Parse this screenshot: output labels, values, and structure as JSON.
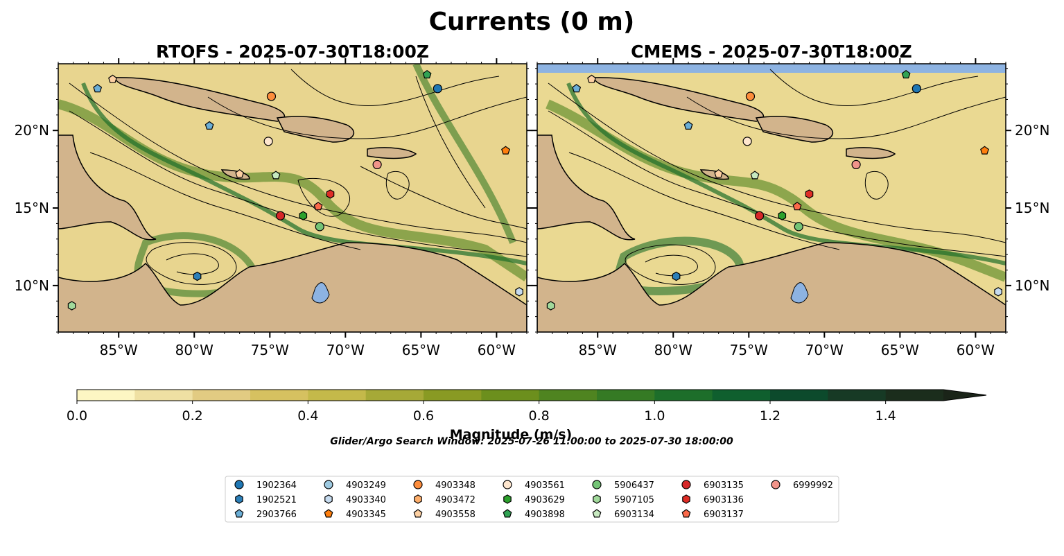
{
  "figure": {
    "title": "Currents (0 m)",
    "search_window": "Glider/Argo Search Window: 2025-07-26 11:00:00 to 2025-07-30 18:00:00"
  },
  "panels": [
    {
      "title": "RTOFS - 2025-07-30T18:00Z"
    },
    {
      "title": "CMEMS - 2025-07-30T18:00Z"
    }
  ],
  "map": {
    "lon_range": [
      -89.0,
      -58.0
    ],
    "lat_range": [
      7.0,
      24.3
    ],
    "lon_ticks": [
      -85,
      -80,
      -75,
      -70,
      -65,
      -60
    ],
    "lat_ticks": [
      10,
      15,
      20
    ],
    "lon_tick_labels": [
      "85°W",
      "80°W",
      "75°W",
      "70°W",
      "65°W",
      "60°W"
    ],
    "lat_tick_labels": [
      "10°N",
      "15°N",
      "20°N"
    ],
    "colors": {
      "land": "#d2b48c",
      "lake": "#8db3e2",
      "river": "#a7bcd6"
    }
  },
  "colorbar": {
    "label": "Magnitude (m/s)",
    "ticks": [
      "0.0",
      "0.2",
      "0.4",
      "0.6",
      "0.8",
      "1.0",
      "1.2",
      "1.4"
    ],
    "levels": [
      0.0,
      0.1,
      0.2,
      0.3,
      0.4,
      0.5,
      0.6,
      0.7,
      0.8,
      0.9,
      1.0,
      1.1,
      1.2,
      1.3,
      1.4,
      1.5
    ],
    "extend": "max",
    "colors": [
      "#fdf6c3",
      "#efe0a3",
      "#e2cb82",
      "#d6c160",
      "#c4b94a",
      "#a6a937",
      "#899a23",
      "#6c8f1d",
      "#4f8420",
      "#357a24",
      "#1d6e2a",
      "#0f5f2e",
      "#0c4a2c",
      "#173a25",
      "#1b2d1c",
      "#1a2418"
    ]
  },
  "legend": {
    "items": [
      {
        "id": "1902364",
        "marker": "circle",
        "color": "#1f77b4"
      },
      {
        "id": "1902521",
        "marker": "hexagon",
        "color": "#2c7fb8"
      },
      {
        "id": "2903766",
        "marker": "pentagon",
        "color": "#6baed6"
      },
      {
        "id": "4903249",
        "marker": "circle",
        "color": "#9ecae1"
      },
      {
        "id": "4903340",
        "marker": "hexagon",
        "color": "#c6dbef"
      },
      {
        "id": "4903345",
        "marker": "pentagon",
        "color": "#ff7f0e"
      },
      {
        "id": "4903348",
        "marker": "circle",
        "color": "#fd8d3c"
      },
      {
        "id": "4903472",
        "marker": "hexagon",
        "color": "#fdae6b"
      },
      {
        "id": "4903558",
        "marker": "pentagon",
        "color": "#fdd0a2"
      },
      {
        "id": "4903561",
        "marker": "circle",
        "color": "#fee6ce"
      },
      {
        "id": "4903629",
        "marker": "hexagon",
        "color": "#2ca02c"
      },
      {
        "id": "4903898",
        "marker": "pentagon",
        "color": "#31a354"
      },
      {
        "id": "5906437",
        "marker": "circle",
        "color": "#74c476"
      },
      {
        "id": "5907105",
        "marker": "hexagon",
        "color": "#a1d99b"
      },
      {
        "id": "6903134",
        "marker": "pentagon",
        "color": "#c7e9c0"
      },
      {
        "id": "6903135",
        "marker": "circle",
        "color": "#d62728"
      },
      {
        "id": "6903136",
        "marker": "hexagon",
        "color": "#de2d26"
      },
      {
        "id": "6903137",
        "marker": "pentagon",
        "color": "#fb6a4a"
      },
      {
        "id": "6999992",
        "marker": "circle",
        "color": "#f1948a"
      }
    ]
  },
  "platforms": [
    {
      "id": "2903766",
      "lon": -86.4,
      "lat": 22.7
    },
    {
      "id": "4903558",
      "lon": -85.4,
      "lat": 23.3
    },
    {
      "id": "4903348",
      "lon": -74.9,
      "lat": 22.2
    },
    {
      "id": "4903898",
      "lon": -64.6,
      "lat": 23.6
    },
    {
      "id": "1902364",
      "lon": -63.9,
      "lat": 22.7
    },
    {
      "id": "2903766",
      "lon": -79.0,
      "lat": 20.3
    },
    {
      "id": "4903561",
      "lon": -75.1,
      "lat": 19.3
    },
    {
      "id": "4903345",
      "lon": -59.4,
      "lat": 18.7
    },
    {
      "id": "6999992",
      "lon": -67.9,
      "lat": 17.8
    },
    {
      "id": "4903558",
      "lon": -77.0,
      "lat": 17.2
    },
    {
      "id": "6903134",
      "lon": -74.6,
      "lat": 17.1
    },
    {
      "id": "6903136",
      "lon": -71.0,
      "lat": 15.9
    },
    {
      "id": "6903137",
      "lon": -71.8,
      "lat": 15.1
    },
    {
      "id": "6903135",
      "lon": -74.3,
      "lat": 14.5
    },
    {
      "id": "4903629",
      "lon": -72.8,
      "lat": 14.5
    },
    {
      "id": "5906437",
      "lon": -71.7,
      "lat": 13.8
    },
    {
      "id": "1902521",
      "lon": -79.8,
      "lat": 10.6
    },
    {
      "id": "5907105",
      "lon": -88.1,
      "lat": 8.7
    },
    {
      "id": "4903340",
      "lon": -58.5,
      "lat": 9.6
    }
  ]
}
